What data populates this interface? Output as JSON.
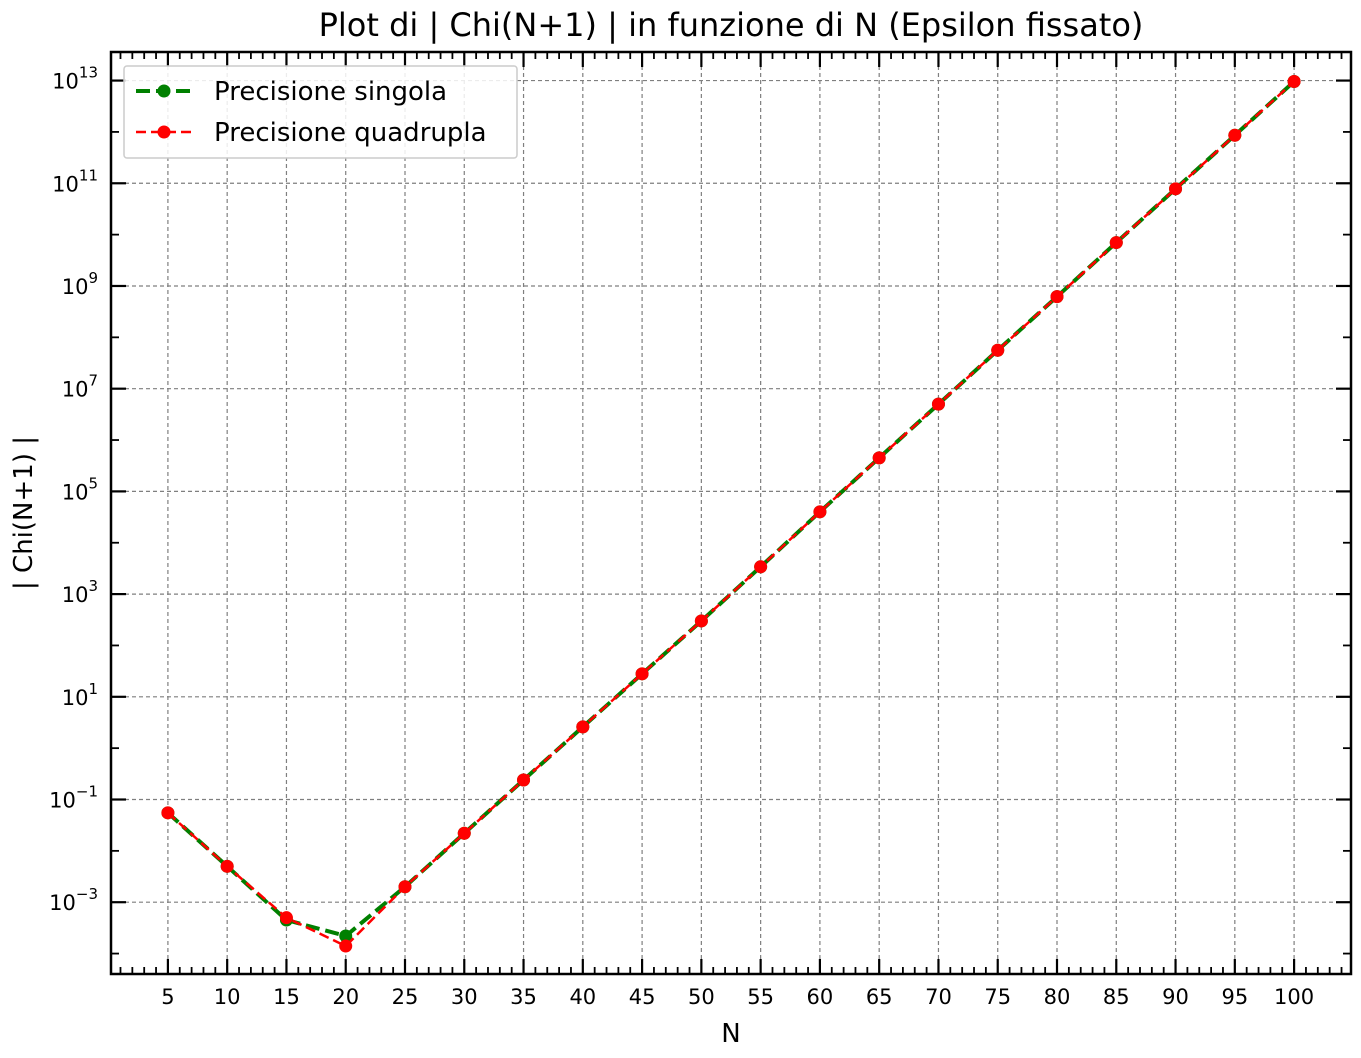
{
  "chart_data": {
    "type": "line",
    "title": "Plot di | Chi(N+1) | in funzione di N (Epsilon fissato)",
    "xlabel": "N",
    "ylabel": "| Chi(N+1) |",
    "xscale": "linear",
    "yscale": "log",
    "xlim": [
      0.2,
      104.8
    ],
    "ylim": [
      4e-05,
      36000000000000.0
    ],
    "grid": true,
    "legend_position": "top-left",
    "x_ticks": [
      "5",
      "10",
      "15",
      "20",
      "25",
      "30",
      "35",
      "40",
      "45",
      "50",
      "55",
      "60",
      "65",
      "70",
      "75",
      "80",
      "85",
      "90",
      "95",
      "100"
    ],
    "y_ticks": [
      {
        "base": "10",
        "exp": "−3",
        "value": 0.001
      },
      {
        "base": "10",
        "exp": "−1",
        "value": 0.1
      },
      {
        "base": "10",
        "exp": "1",
        "value": 10
      },
      {
        "base": "10",
        "exp": "3",
        "value": 1000
      },
      {
        "base": "10",
        "exp": "5",
        "value": 100000
      },
      {
        "base": "10",
        "exp": "7",
        "value": 10000000
      },
      {
        "base": "10",
        "exp": "9",
        "value": 1000000000
      },
      {
        "base": "10",
        "exp": "11",
        "value": 100000000000
      },
      {
        "base": "10",
        "exp": "13",
        "value": 10000000000000
      }
    ],
    "x": [
      5,
      10,
      15,
      20,
      25,
      30,
      35,
      40,
      45,
      50,
      55,
      60,
      65,
      70,
      75,
      80,
      85,
      90,
      95,
      100
    ],
    "series": [
      {
        "name": "Precisione singola",
        "color": "#008000",
        "values": [
          0.055,
          0.005,
          0.00045,
          0.00022,
          0.002,
          0.022,
          0.24,
          2.6,
          28,
          300,
          3400,
          40000,
          450000,
          5000000,
          56000000,
          620000000,
          7000000000,
          78000000000,
          860000000000,
          9600000000000
        ]
      },
      {
        "name": "Precisione quadrupla",
        "color": "#ff0000",
        "values": [
          0.055,
          0.005,
          0.0005,
          0.00014,
          0.002,
          0.022,
          0.24,
          2.6,
          28,
          300,
          3400,
          40000,
          450000,
          5000000,
          56000000,
          620000000,
          7000000000,
          78000000000,
          860000000000,
          9600000000000
        ]
      }
    ]
  }
}
